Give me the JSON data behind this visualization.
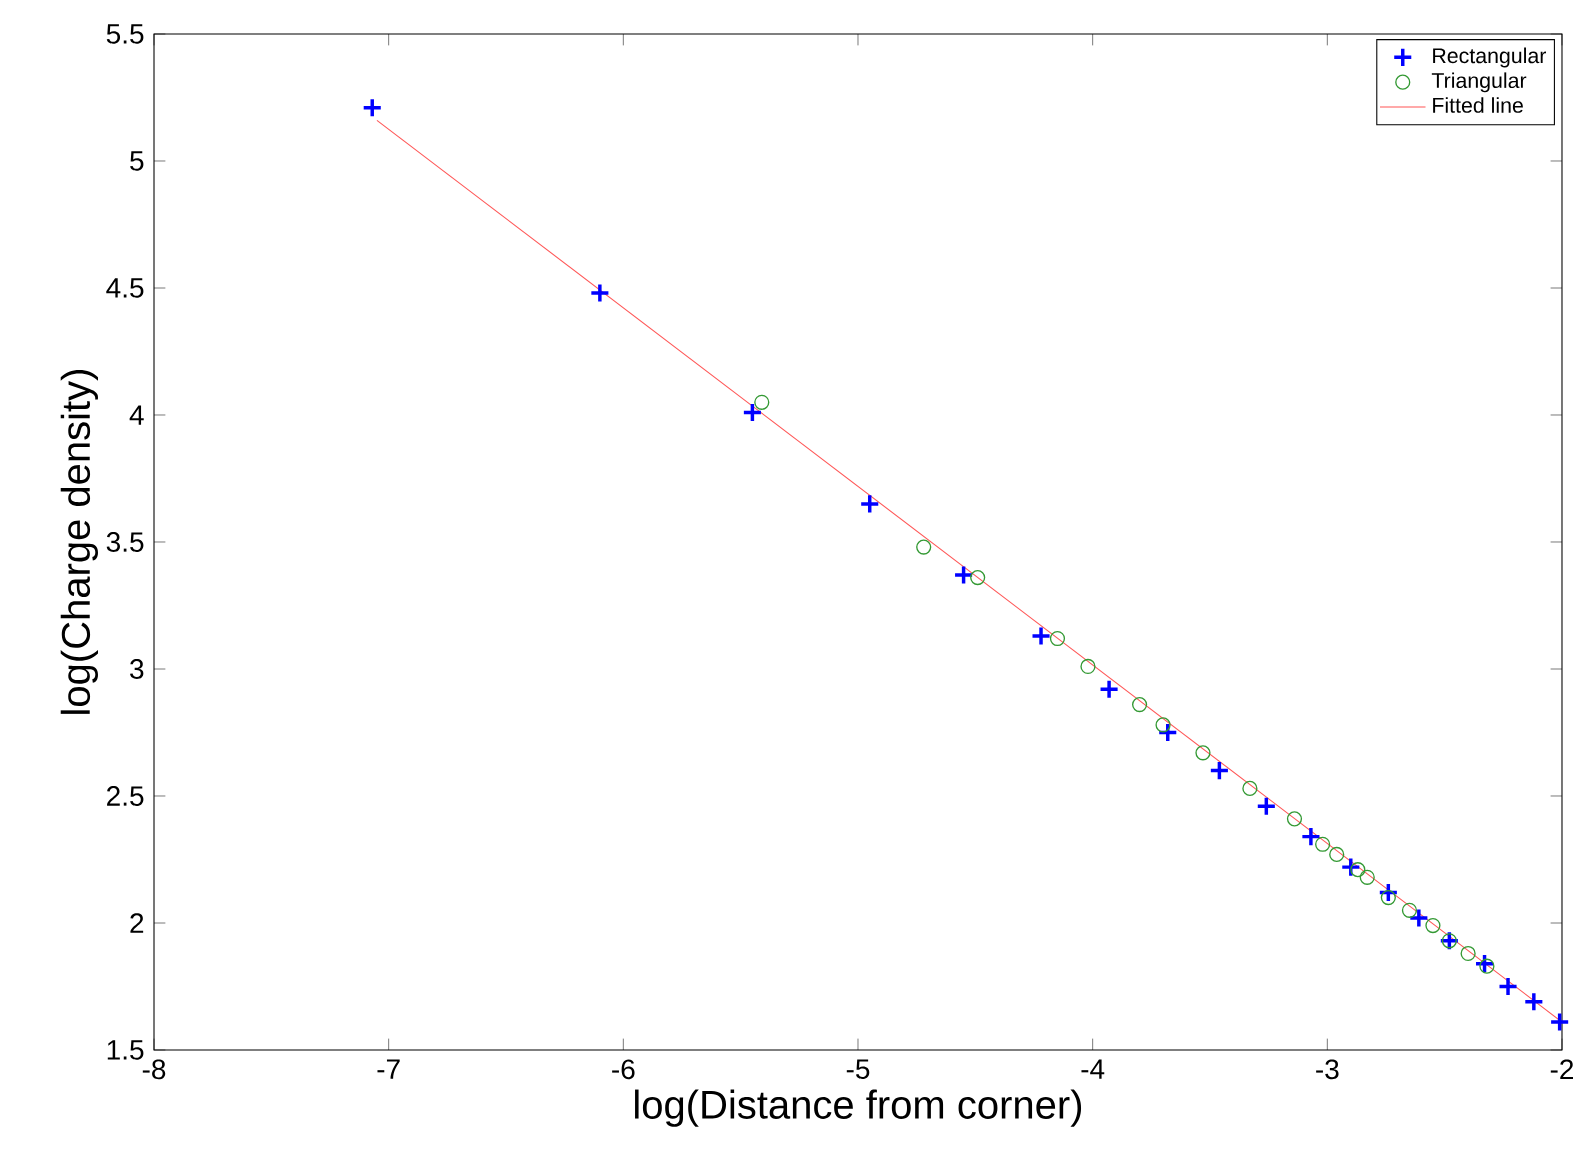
{
  "chart_data": {
    "type": "scatter",
    "xlabel": "log(Distance from corner)",
    "ylabel": "log(Charge density)",
    "xlim": [
      -8,
      -2
    ],
    "ylim": [
      1.5,
      5.5
    ],
    "xticks": [
      -8,
      -7,
      -6,
      -5,
      -4,
      -3,
      -2
    ],
    "yticks": [
      1.5,
      2,
      2.5,
      3,
      3.5,
      4,
      4.5,
      5,
      5.5
    ],
    "grid": false,
    "legend": "top right",
    "series": [
      {
        "name": "Rectangular",
        "marker": "cross",
        "color": "#0000ff",
        "x": [
          -7.07,
          -6.1,
          -5.45,
          -4.95,
          -4.55,
          -4.22,
          -3.93,
          -3.68,
          -3.46,
          -3.26,
          -3.07,
          -2.9,
          -2.74,
          -2.61,
          -2.48,
          -2.33,
          -2.23,
          -2.12,
          -2.01
        ],
        "values": [
          5.21,
          4.48,
          4.01,
          3.65,
          3.37,
          3.13,
          2.92,
          2.75,
          2.6,
          2.46,
          2.34,
          2.22,
          2.12,
          2.02,
          1.93,
          1.84,
          1.75,
          1.69,
          1.61
        ]
      },
      {
        "name": "Triangular",
        "marker": "circle",
        "color": "#339933",
        "x": [
          -5.41,
          -4.72,
          -4.49,
          -4.15,
          -4.02,
          -3.8,
          -3.7,
          -3.53,
          -3.33,
          -3.14,
          -3.02,
          -2.96,
          -2.87,
          -2.83,
          -2.74,
          -2.65,
          -2.55,
          -2.48,
          -2.4,
          -2.32
        ],
        "values": [
          4.05,
          3.48,
          3.36,
          3.12,
          3.01,
          2.86,
          2.78,
          2.67,
          2.53,
          2.41,
          2.31,
          2.27,
          2.21,
          2.18,
          2.1,
          2.05,
          1.99,
          1.93,
          1.88,
          1.83
        ]
      },
      {
        "name": "Fitted line",
        "type": "line",
        "marker": "none",
        "line_style": "solid",
        "color": "#ff5555",
        "x": [
          -7.05,
          -2.0
        ],
        "values": [
          5.16,
          1.61
        ]
      }
    ]
  }
}
